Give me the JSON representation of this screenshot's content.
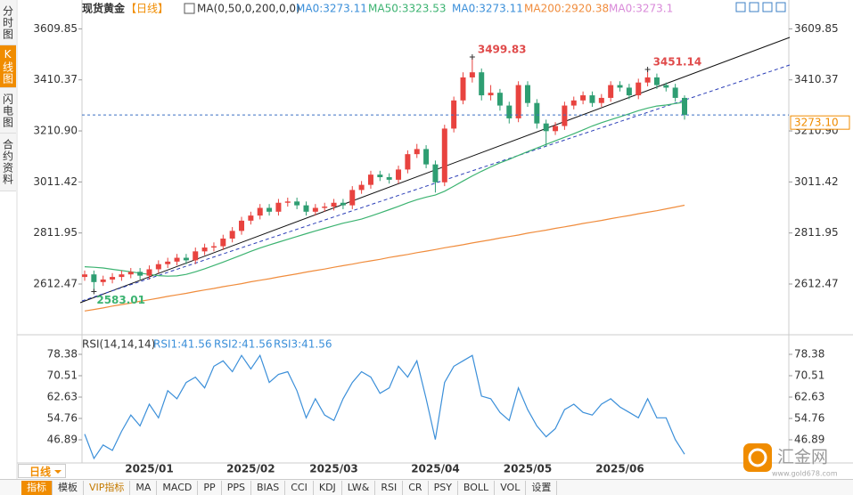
{
  "sidebar": [
    "分时图",
    "K线图",
    "闪电图",
    "合约资料"
  ],
  "chart_data": {
    "type": "candlestick",
    "title": "现货黄金",
    "period": "【日线】",
    "indicator": "MA(0,50,0,200,0,0)",
    "ma_labels": [
      "MA0:3273.11",
      "MA50:3323.53",
      "MA0:3273.11",
      "MA200:2920.38",
      "MA0:3273.1"
    ],
    "ma_label_colors": [
      "#3b8fd9",
      "#3cb371",
      "#3b8fd9",
      "#f08c3c",
      "#d98ad9"
    ],
    "up_color": "#e8433f",
    "down_color": "#2e9e72",
    "categories": [
      null,
      null,
      null,
      null,
      null,
      null,
      null,
      "2025/01",
      null,
      null,
      null,
      null,
      null,
      null,
      null,
      null,
      null,
      null,
      "2025/02",
      null,
      null,
      null,
      null,
      null,
      null,
      null,
      null,
      "2025/03",
      null,
      null,
      null,
      null,
      null,
      null,
      null,
      null,
      null,
      null,
      "2025/04",
      null,
      null,
      null,
      null,
      null,
      null,
      null,
      null,
      null,
      "2025/05",
      null,
      null,
      null,
      null,
      null,
      null,
      null,
      null,
      null,
      "2025/06",
      null,
      null,
      null,
      null,
      null,
      null,
      null
    ],
    "open": [
      2640,
      2650,
      2620,
      2630,
      2640,
      2650,
      2660,
      2645,
      2670,
      2690,
      2700,
      2715,
      2705,
      2740,
      2755,
      2760,
      2790,
      2820,
      2860,
      2880,
      2910,
      2895,
      2930,
      2935,
      2920,
      2895,
      2910,
      2915,
      2930,
      2920,
      2980,
      3000,
      3040,
      3030,
      3020,
      3060,
      3120,
      3140,
      3080,
      3010,
      3220,
      3330,
      3420,
      3440,
      3350,
      3360,
      3310,
      3260,
      3390,
      3320,
      3240,
      3210,
      3230,
      3310,
      3330,
      3350,
      3320,
      3340,
      3390,
      3380,
      3350,
      3400,
      3420,
      3390,
      3380,
      3340
    ],
    "high": [
      2665,
      2665,
      2645,
      2655,
      2665,
      2675,
      2675,
      2685,
      2705,
      2715,
      2730,
      2730,
      2755,
      2770,
      2775,
      2805,
      2835,
      2875,
      2895,
      2925,
      2925,
      2945,
      2950,
      2950,
      2935,
      2925,
      2930,
      2945,
      2945,
      2995,
      3015,
      3055,
      3055,
      3045,
      3075,
      3135,
      3160,
      3155,
      3095,
      3235,
      3345,
      3440,
      3499.83,
      3455,
      3390,
      3375,
      3325,
      3405,
      3405,
      3335,
      3255,
      3245,
      3325,
      3345,
      3365,
      3365,
      3355,
      3405,
      3405,
      3395,
      3415,
      3451.14,
      3435,
      3400,
      3395,
      3350
    ],
    "low": [
      2625,
      2583.01,
      2605,
      2615,
      2625,
      2635,
      2630,
      2630,
      2655,
      2675,
      2685,
      2690,
      2690,
      2725,
      2740,
      2745,
      2775,
      2805,
      2845,
      2865,
      2880,
      2880,
      2915,
      2905,
      2880,
      2880,
      2895,
      2900,
      2905,
      2905,
      2965,
      2985,
      3015,
      3005,
      3005,
      3045,
      3105,
      3065,
      2970,
      2995,
      3205,
      3315,
      3400,
      3330,
      3330,
      3290,
      3240,
      3245,
      3305,
      3220,
      3150,
      3195,
      3215,
      3295,
      3315,
      3305,
      3305,
      3325,
      3365,
      3335,
      3335,
      3385,
      3375,
      3365,
      3325,
      3255
    ],
    "close": [
      2650,
      2620,
      2630,
      2640,
      2650,
      2660,
      2645,
      2670,
      2690,
      2700,
      2715,
      2705,
      2740,
      2755,
      2760,
      2790,
      2820,
      2860,
      2880,
      2910,
      2895,
      2930,
      2935,
      2920,
      2895,
      2910,
      2915,
      2930,
      2920,
      2980,
      3000,
      3040,
      3030,
      3020,
      3060,
      3120,
      3140,
      3080,
      3010,
      3220,
      3330,
      3420,
      3440,
      3350,
      3360,
      3310,
      3260,
      3390,
      3320,
      3240,
      3210,
      3230,
      3310,
      3330,
      3350,
      3320,
      3340,
      3390,
      3380,
      3350,
      3400,
      3420,
      3390,
      3380,
      3340,
      3273.1
    ],
    "high_labels": {
      "42": "3499.83",
      "61": "3451.14"
    },
    "low_labels": {
      "1": "2583.01"
    },
    "close_labels": {
      "65": "3273.10"
    },
    "series": [
      {
        "color": "#3cb371",
        "values": [
          2680,
          2678,
          2675,
          2670,
          2665,
          2660,
          2655,
          2650,
          2645,
          2643,
          2644,
          2650,
          2660,
          2672,
          2685,
          2698,
          2712,
          2726,
          2740,
          2753,
          2765,
          2776,
          2787,
          2798,
          2809,
          2820,
          2830,
          2840,
          2850,
          2858,
          2866,
          2878,
          2890,
          2903,
          2916,
          2930,
          2942,
          2952,
          2960,
          2975,
          2995,
          3015,
          3035,
          3053,
          3070,
          3086,
          3100,
          3115,
          3130,
          3144,
          3158,
          3172,
          3186,
          3200,
          3215,
          3230,
          3243,
          3255,
          3266,
          3278,
          3290,
          3300,
          3308,
          3312,
          3318,
          3323.53
        ]
      },
      {
        "color": "#f08c3c",
        "values": [
          2507,
          2513,
          2519,
          2526,
          2532,
          2538,
          2545,
          2551,
          2557,
          2564,
          2570,
          2576,
          2583,
          2589,
          2595,
          2602,
          2608,
          2614,
          2621,
          2627,
          2633,
          2640,
          2646,
          2652,
          2659,
          2665,
          2671,
          2678,
          2684,
          2690,
          2697,
          2703,
          2709,
          2716,
          2722,
          2728,
          2735,
          2741,
          2747,
          2754,
          2760,
          2766,
          2773,
          2779,
          2785,
          2792,
          2798,
          2804,
          2811,
          2817,
          2823,
          2830,
          2836,
          2842,
          2849,
          2855,
          2861,
          2868,
          2874,
          2880,
          2887,
          2893,
          2899,
          2906,
          2913,
          2920.38
        ]
      }
    ],
    "ylim": [
      2428,
      3653
    ],
    "yticks": [
      3609.85,
      3410.37,
      {
        "value": 3210.9,
        "label": "3210.90"
      },
      3011.42,
      2811.95,
      2612.47
    ]
  },
  "rsi_chart": {
    "type": "line",
    "title": "RSI(14,14,14)",
    "labels": [
      "RSI1:41.56",
      "RSI2:41.56",
      "RSI3:41.56"
    ],
    "series": [
      {
        "color": "#3b8fd9",
        "values": [
          49,
          40,
          45,
          43,
          50,
          56,
          52,
          60,
          55,
          65,
          62,
          68,
          70,
          66,
          74,
          76,
          72,
          78,
          73,
          78,
          68,
          71,
          72,
          65,
          55,
          62,
          56,
          54,
          62,
          68,
          72,
          70,
          64,
          66,
          74,
          70,
          76,
          62,
          47,
          68,
          74,
          76,
          78,
          63,
          62,
          57,
          54,
          66,
          58,
          52,
          48,
          51,
          58,
          60,
          57,
          56,
          60,
          62,
          59,
          57,
          55,
          62,
          55,
          55,
          47,
          41.56
        ]
      }
    ],
    "ylim": [
      38.36,
      80.35
    ],
    "yticks": [
      78.38,
      70.51,
      62.63,
      54.76,
      46.89
    ]
  },
  "toolbar": {
    "period": "日线",
    "items": [
      "指标",
      "模板",
      "VIP指标",
      "MA",
      "MACD",
      "PP",
      "PPS",
      "BIAS",
      "CCI",
      "KDJ",
      "LW&",
      "RSI",
      "CR",
      "PSY",
      "BOLL",
      "VOL",
      "设置"
    ]
  },
  "logo": {
    "name": "汇金网",
    "url": "www.gold678.com"
  }
}
